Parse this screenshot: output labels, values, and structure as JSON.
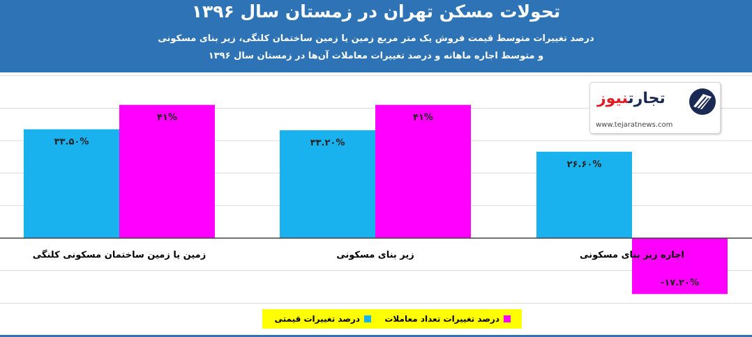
{
  "header": {
    "title": "تحولات مسکن تهران در زمستان سال ۱۳۹۶",
    "subtitle_line1": "درصد تغییرات متوسط قیمت فروش یک متر مربع زمین یا زمین ساختمان کلنگی، زیر بنای مسکونی",
    "subtitle_line2": "و متوسط اجاره ماهانه و درصد تغییرات معاملات آن‌ها در زمستان سال ۱۳۹۶"
  },
  "logo": {
    "name_part1": "تجارت",
    "name_part2": "نیوز",
    "url": "www.tejaratnews.com"
  },
  "colors": {
    "header": "#2d73b6",
    "price": "#1ab2ee",
    "transactions": "#ff00ff",
    "legend_bg": "#ffff00"
  },
  "chart_data": {
    "type": "bar",
    "categories": [
      "زمین یا زمین ساختمان مسکونی کلنگی",
      "زیر بنای مسکونی",
      "اجاره زیر بنای مسکونی"
    ],
    "series": [
      {
        "name": "درصد تغییرات قیمتی",
        "color": "#1ab2ee",
        "values": [
          33.5,
          33.2,
          26.6
        ],
        "labels": [
          "۳۳.۵۰%",
          "۳۳.۲۰%",
          "۲۶.۶۰%"
        ]
      },
      {
        "name": "درصد تغییرات تعداد معاملات",
        "color": "#ff00ff",
        "values": [
          41,
          41,
          -17.2
        ],
        "labels": [
          "۴۱%",
          "۴۱%",
          "-۱۷.۲۰%"
        ]
      }
    ],
    "ylim": [
      -20,
      50
    ],
    "grid": true,
    "legend_position": "bottom"
  }
}
